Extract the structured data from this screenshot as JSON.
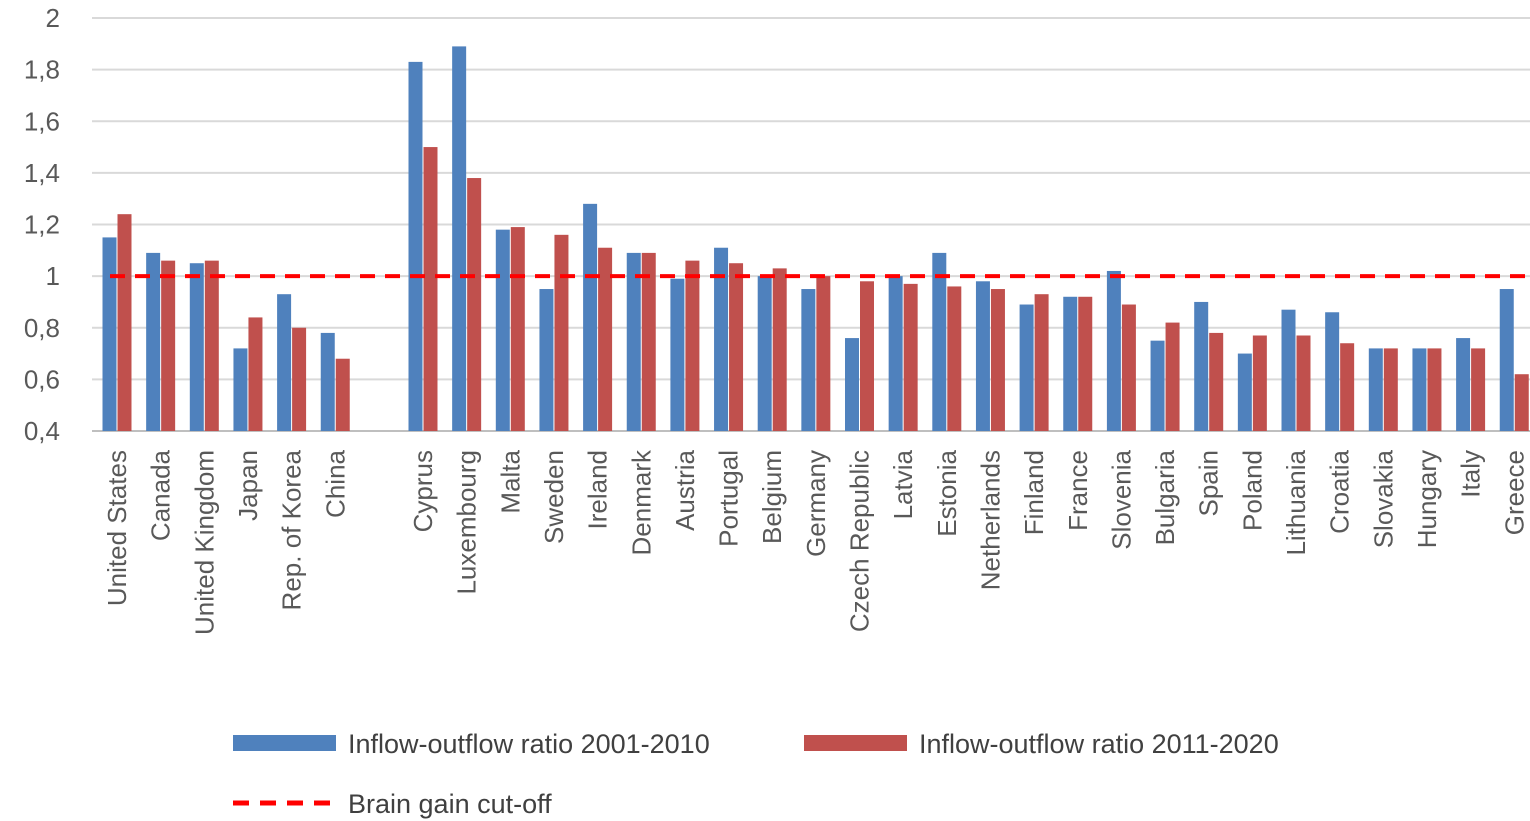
{
  "chart_data": {
    "type": "bar",
    "categories": [
      "United States",
      "Canada",
      "United Kingdom",
      "Japan",
      "Rep. of Korea",
      "China",
      "Cyprus",
      "Luxembourg",
      "Malta",
      "Sweden",
      "Ireland",
      "Denmark",
      "Austria",
      "Portugal",
      "Belgium",
      "Germany",
      "Czech Republic",
      "Latvia",
      "Estonia",
      "Netherlands",
      "Finland",
      "France",
      "Slovenia",
      "Bulgaria",
      "Spain",
      "Poland",
      "Lithuania",
      "Croatia",
      "Slovakia",
      "Hungary",
      "Italy",
      "Greece"
    ],
    "category_group_break_after": "China",
    "series": [
      {
        "name": "Inflow-outflow ratio 2001-2010",
        "color": "#4f81bd",
        "values": [
          1.15,
          1.09,
          1.05,
          0.72,
          0.93,
          0.78,
          1.83,
          1.89,
          1.18,
          0.95,
          1.28,
          1.09,
          0.99,
          1.11,
          1.0,
          0.95,
          0.76,
          1.0,
          1.09,
          0.98,
          0.89,
          0.92,
          1.02,
          0.75,
          0.9,
          0.7,
          0.87,
          0.86,
          0.72,
          0.72,
          0.76,
          0.95
        ]
      },
      {
        "name": "Inflow-outflow ratio 2011-2020",
        "color": "#c0504d",
        "values": [
          1.24,
          1.06,
          1.06,
          0.84,
          0.8,
          0.68,
          1.5,
          1.38,
          1.19,
          1.16,
          1.11,
          1.09,
          1.06,
          1.05,
          1.03,
          1.0,
          0.98,
          0.97,
          0.96,
          0.95,
          0.93,
          0.92,
          0.89,
          0.82,
          0.78,
          0.77,
          0.77,
          0.74,
          0.72,
          0.72,
          0.72,
          0.62
        ]
      }
    ],
    "reference_line": {
      "name": "Brain gain cut-off",
      "value": 1,
      "color": "#ff0000",
      "style": "dashed"
    },
    "ylim": [
      0.4,
      2
    ],
    "yticks": [
      "0,4",
      "0,6",
      "0,8",
      "1",
      "1,2",
      "1,4",
      "1,6",
      "1,8",
      "2"
    ],
    "grid": true,
    "legend_position": "bottom",
    "title": "",
    "xlabel": "",
    "ylabel": ""
  }
}
